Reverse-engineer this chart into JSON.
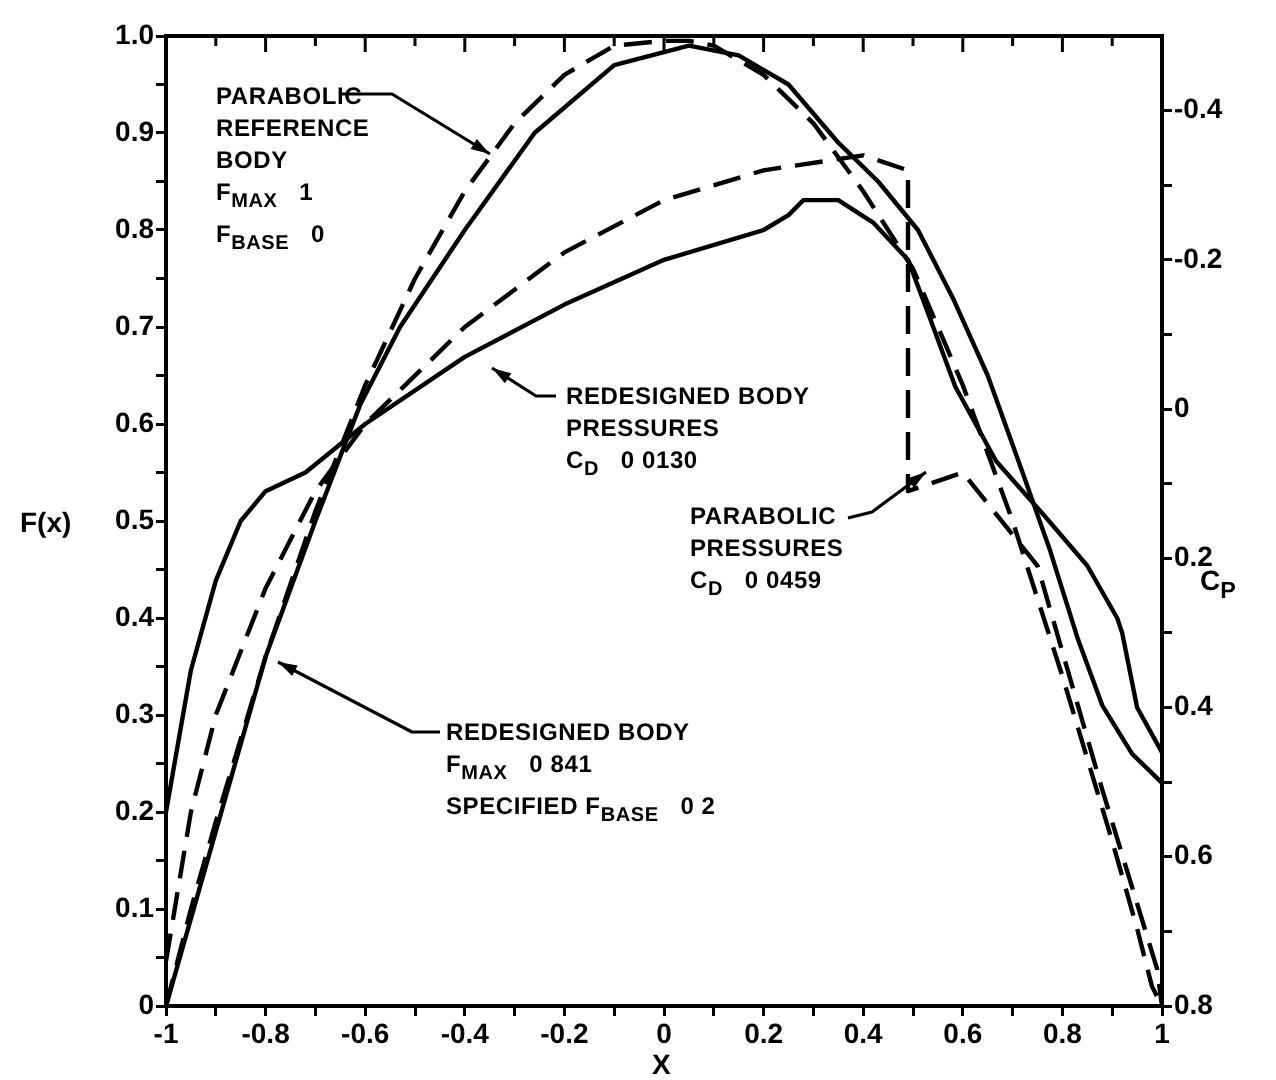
{
  "chart_data": {
    "type": "line",
    "xlabel": "X",
    "ylabel": "F(x)",
    "y2label": "C$_{P}$",
    "annotations": [
      "PARABOLIC\nREFERENCE\nBODY\nF$_{MAX}$   1\nF$_{BASE}$   0",
      "REDESIGNED BODY\nPRESSURES\nC$_{D}$   0 0130",
      "PARABOLIC\nPRESSURES\nC$_{D}$   0 0459",
      "REDESIGNED BODY\nF$_{MAX}$   0 841\nSPECIFIED F$_{BASE}$   0 2"
    ],
    "xlim": [
      -1,
      1
    ],
    "xticks": [
      -1,
      {
        "value": -0.9,
        "label": null
      },
      -0.8,
      {
        "value": -0.7,
        "label": null
      },
      -0.6,
      {
        "value": -0.5,
        "label": null
      },
      -0.4,
      {
        "value": -0.3,
        "label": null
      },
      -0.2,
      {
        "value": -0.1,
        "label": null
      },
      0,
      {
        "value": 0.1,
        "label": null
      },
      0.2,
      {
        "value": 0.3,
        "label": null
      },
      0.4,
      {
        "value": 0.5,
        "label": null
      },
      0.6,
      {
        "value": 0.7,
        "label": null
      },
      0.8,
      {
        "value": 0.9,
        "label": null
      },
      1
    ],
    "ylim": [
      0,
      1
    ],
    "yticks": [
      0,
      {
        "value": 0.05,
        "label": null
      },
      0.1,
      {
        "value": 0.15,
        "label": null
      },
      0.2,
      {
        "value": 0.25,
        "label": null
      },
      0.3,
      {
        "value": 0.35,
        "label": null
      },
      0.4,
      {
        "value": 0.45,
        "label": null
      },
      0.5,
      {
        "value": 0.55,
        "label": null
      },
      0.6,
      {
        "value": 0.65,
        "label": null
      },
      0.7,
      {
        "value": 0.75,
        "label": null
      },
      0.8,
      {
        "value": 0.85,
        "label": null
      },
      0.9,
      {
        "value": 0.95,
        "label": null
      },
      {
        "value": 1,
        "label": "1.0"
      }
    ],
    "y2lim": [
      0.8,
      -0.5
    ],
    "y2ticks": [
      -0.4,
      {
        "value": -0.3,
        "label": null
      },
      -0.2,
      {
        "value": -0.1,
        "label": null
      },
      0,
      {
        "value": 0.1,
        "label": null
      },
      0.2,
      {
        "value": 0.3,
        "label": null
      },
      0.4,
      {
        "value": 0.5,
        "label": null
      },
      0.6,
      {
        "value": 0.7,
        "label": null
      },
      0.8
    ],
    "marker": "none",
    "series": [
      {
        "color": "#000000",
        "line_style": "dashed",
        "x": [
          -1,
          -0.95,
          -0.9,
          -0.8,
          -0.7,
          -0.6,
          -0.5,
          -0.4,
          -0.3,
          -0.2,
          -0.1,
          0,
          0.05,
          0.1,
          0.2,
          0.3,
          0.4,
          0.5,
          0.6,
          0.7,
          0.8,
          0.9,
          0.95,
          0.98,
          1
        ],
        "values": [
          0,
          0.1,
          0.19,
          0.36,
          0.51,
          0.64,
          0.75,
          0.84,
          0.91,
          0.96,
          0.99,
          0.995,
          0.995,
          0.99,
          0.96,
          0.91,
          0.84,
          0.76,
          0.64,
          0.5,
          0.34,
          0.17,
          0.08,
          0.02,
          0
        ]
      },
      {
        "color": "#000000",
        "line_style": "solid",
        "x": [
          -1,
          -0.95,
          -0.9,
          -0.8,
          -0.7,
          -0.61,
          -0.53,
          -0.4,
          -0.26,
          -0.1,
          0.05,
          0.15,
          0.25,
          0.35,
          0.43,
          0.51,
          0.58,
          0.65,
          0.72,
          0.775,
          0.83,
          0.88,
          0.94,
          1
        ],
        "values": [
          0,
          0.09,
          0.18,
          0.36,
          0.5,
          0.62,
          0.7,
          0.8,
          0.9,
          0.97,
          0.99,
          0.98,
          0.95,
          0.89,
          0.85,
          0.8,
          0.73,
          0.65,
          0.55,
          0.47,
          0.38,
          0.31,
          0.26,
          0.23
        ]
      },
      {
        "color": "#000000",
        "line_style": "solid",
        "axis": "y2",
        "x": [
          -1,
          -0.95,
          -0.9,
          -0.85,
          -0.8,
          -0.72,
          -0.6,
          -0.4,
          -0.2,
          0,
          0.2,
          0.25,
          0.28,
          0.35,
          0.42,
          0.49,
          0.535,
          0.585,
          0.667,
          0.76,
          0.85,
          0.91,
          0.92,
          0.95,
          1
        ],
        "values": [
          0.54,
          0.35,
          0.23,
          0.15,
          0.11,
          0.085,
          0.02,
          -0.07,
          -0.14,
          -0.2,
          -0.24,
          -0.26,
          -0.28,
          -0.28,
          -0.25,
          -0.2,
          -0.12,
          -0.03,
          0.07,
          0.14,
          0.21,
          0.28,
          0.3,
          0.4,
          0.46
        ]
      },
      {
        "color": "#000000",
        "line_style": "dashed",
        "axis": "y2",
        "x": [
          -1,
          -0.95,
          -0.9,
          -0.8,
          -0.7,
          -0.6,
          -0.4,
          -0.2,
          0,
          0.2,
          0.4,
          0.49,
          0.49,
          0.6,
          0.75,
          0.88,
          0.99,
          1
        ],
        "values": [
          0.74,
          0.54,
          0.41,
          0.24,
          0.11,
          0.02,
          -0.11,
          -0.21,
          -0.28,
          -0.32,
          -0.34,
          -0.32,
          0.11,
          0.085,
          0.21,
          0.51,
          0.75,
          0.8
        ]
      }
    ]
  }
}
